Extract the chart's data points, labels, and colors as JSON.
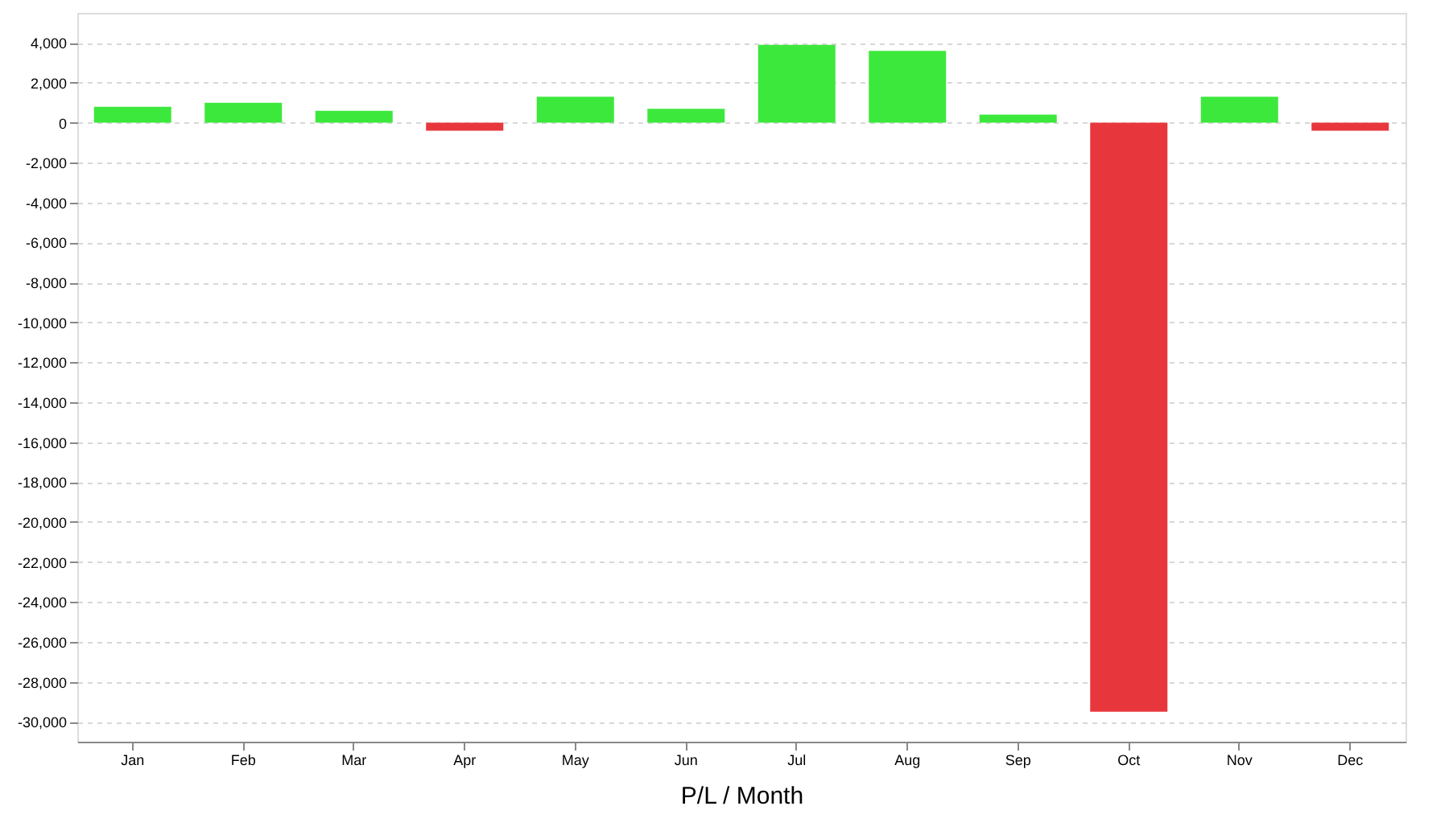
{
  "chart_data": {
    "type": "bar",
    "xlabel": "P/L / Month",
    "categories": [
      "Jan",
      "Feb",
      "Mar",
      "Apr",
      "May",
      "Jun",
      "Jul",
      "Aug",
      "Sep",
      "Oct",
      "Nov",
      "Dec"
    ],
    "values": [
      800,
      1000,
      600,
      -400,
      1300,
      700,
      3900,
      3600,
      400,
      -29500,
      1300,
      -400
    ],
    "colors": [
      "#3de83d",
      "#3de83d",
      "#3de83d",
      "#e8373c",
      "#3de83d",
      "#3de83d",
      "#3de83d",
      "#3de83d",
      "#3de83d",
      "#e8373c",
      "#3de83d",
      "#e8373c"
    ],
    "ylim": [
      -31000,
      5500
    ],
    "yticks": [
      {
        "value": -30000,
        "label": "-30,000"
      },
      {
        "value": -28000,
        "label": "-28,000"
      },
      {
        "value": -26000,
        "label": "-26,000"
      },
      {
        "value": -24000,
        "label": "-24,000"
      },
      {
        "value": -22000,
        "label": "-22,000"
      },
      {
        "value": -20000,
        "label": "-20,000"
      },
      {
        "value": -18000,
        "label": "-18,000"
      },
      {
        "value": -16000,
        "label": "-16,000"
      },
      {
        "value": -14000,
        "label": "-14,000"
      },
      {
        "value": -12000,
        "label": "-12,000"
      },
      {
        "value": -10000,
        "label": "-10,000"
      },
      {
        "value": -8000,
        "label": "-8,000"
      },
      {
        "value": -6000,
        "label": "-6,000"
      },
      {
        "value": -4000,
        "label": "-4,000"
      },
      {
        "value": -2000,
        "label": "-2,000"
      },
      0,
      {
        "value": 2000,
        "label": "2,000"
      },
      {
        "value": 4000,
        "label": "4,000"
      }
    ],
    "grid": "y"
  }
}
